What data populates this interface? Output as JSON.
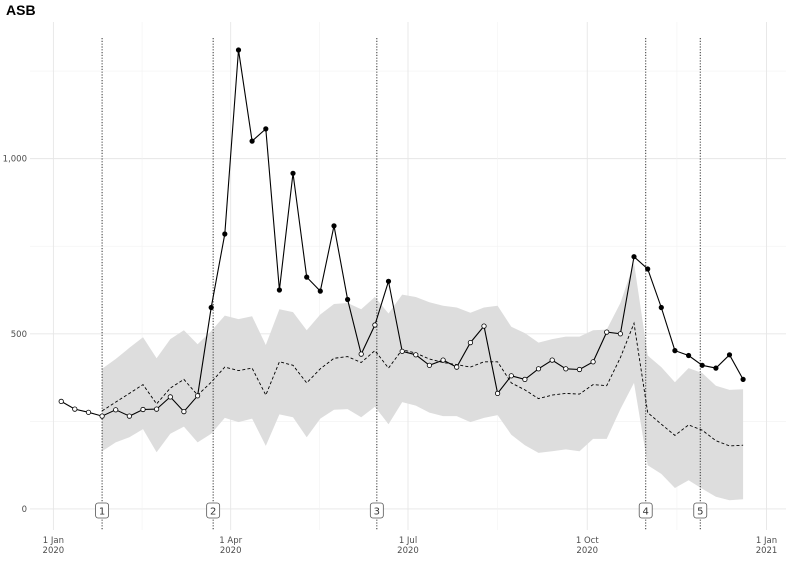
{
  "chart_data": {
    "type": "line",
    "title": "ASB",
    "xlabel": "",
    "ylabel": "",
    "x_range": [
      "2019-12-20",
      "2021-01-11"
    ],
    "y_range": [
      -60,
      1390
    ],
    "grid": true,
    "y_ticks": [
      {
        "value": 0,
        "label": "0"
      },
      {
        "value": 500,
        "label": "500"
      },
      {
        "value": 1000,
        "label": "1,000"
      }
    ],
    "x_ticks": [
      {
        "date": "2020-01-01",
        "label": [
          "1 Jan",
          "2020"
        ]
      },
      {
        "date": "2020-04-01",
        "label": [
          "1 Apr",
          "2020"
        ]
      },
      {
        "date": "2020-07-01",
        "label": [
          "1 Jul",
          "2020"
        ]
      },
      {
        "date": "2020-10-01",
        "label": [
          "1 Oct",
          "2020"
        ]
      },
      {
        "date": "2021-01-01",
        "label": [
          "1 Jan",
          "2021"
        ]
      }
    ],
    "events": [
      {
        "label": "1",
        "date": "2020-01-26"
      },
      {
        "label": "2",
        "date": "2020-03-23"
      },
      {
        "label": "3",
        "date": "2020-06-15"
      },
      {
        "label": "4",
        "date": "2020-10-31"
      },
      {
        "label": "5",
        "date": "2020-11-28"
      }
    ],
    "x": [
      "2020-01-05",
      "2020-01-12",
      "2020-01-19",
      "2020-01-26",
      "2020-02-02",
      "2020-02-09",
      "2020-02-16",
      "2020-02-23",
      "2020-03-01",
      "2020-03-08",
      "2020-03-15",
      "2020-03-22",
      "2020-03-29",
      "2020-04-05",
      "2020-04-12",
      "2020-04-19",
      "2020-04-26",
      "2020-05-03",
      "2020-05-10",
      "2020-05-17",
      "2020-05-24",
      "2020-05-31",
      "2020-06-07",
      "2020-06-14",
      "2020-06-21",
      "2020-06-28",
      "2020-07-05",
      "2020-07-12",
      "2020-07-19",
      "2020-07-26",
      "2020-08-02",
      "2020-08-09",
      "2020-08-16",
      "2020-08-23",
      "2020-08-30",
      "2020-09-06",
      "2020-09-13",
      "2020-09-20",
      "2020-09-27",
      "2020-10-04",
      "2020-10-11",
      "2020-10-18",
      "2020-10-25",
      "2020-11-01",
      "2020-11-08",
      "2020-11-15",
      "2020-11-22",
      "2020-11-29",
      "2020-12-06",
      "2020-12-13",
      "2020-12-20"
    ],
    "series": [
      {
        "values": [
          307,
          285,
          276,
          265,
          283,
          265,
          284,
          285,
          320,
          278,
          323,
          575,
          785,
          1310,
          1050,
          1085,
          625,
          958,
          662,
          622,
          808,
          598,
          442,
          525,
          650,
          450,
          440,
          410,
          425,
          405,
          475,
          522,
          330,
          380,
          370,
          400,
          425,
          400,
          398,
          420,
          505,
          500,
          720,
          685,
          575,
          452,
          438,
          410,
          402,
          440,
          370
        ],
        "point_fill": [
          "open",
          "open",
          "open",
          "open",
          "open",
          "open",
          "open",
          "open",
          "open",
          "open",
          "open",
          "filled",
          "filled",
          "filled",
          "filled",
          "filled",
          "filled",
          "filled",
          "filled",
          "filled",
          "filled",
          "filled",
          "open",
          "open",
          "filled",
          "open",
          "open",
          "open",
          "open",
          "open",
          "open",
          "open",
          "open",
          "open",
          "open",
          "open",
          "open",
          "open",
          "open",
          "open",
          "open",
          "open",
          "filled",
          "filled",
          "filled",
          "filled",
          "filled",
          "filled",
          "filled",
          "filled",
          "filled"
        ]
      },
      {
        "values": [
          null,
          null,
          null,
          280,
          305,
          330,
          355,
          300,
          345,
          370,
          325,
          362,
          405,
          395,
          402,
          325,
          420,
          410,
          360,
          400,
          430,
          435,
          418,
          452,
          402,
          455,
          445,
          428,
          418,
          412,
          405,
          420,
          420,
          360,
          340,
          315,
          325,
          330,
          328,
          355,
          352,
          432,
          530,
          275,
          242,
          210,
          240,
          225,
          195,
          180,
          182
        ],
        "lower": [
          null,
          null,
          null,
          165,
          190,
          205,
          228,
          162,
          215,
          235,
          190,
          215,
          260,
          248,
          258,
          180,
          270,
          262,
          205,
          258,
          283,
          285,
          262,
          292,
          242,
          305,
          295,
          275,
          265,
          265,
          248,
          260,
          268,
          212,
          182,
          160,
          165,
          170,
          165,
          200,
          200,
          285,
          360,
          125,
          100,
          60,
          82,
          58,
          35,
          25,
          28
        ],
        "upper": [
          null,
          null,
          null,
          400,
          428,
          460,
          490,
          430,
          485,
          510,
          470,
          508,
          552,
          542,
          550,
          468,
          570,
          562,
          510,
          555,
          585,
          588,
          570,
          605,
          558,
          612,
          605,
          590,
          580,
          575,
          560,
          575,
          580,
          520,
          502,
          475,
          485,
          492,
          492,
          510,
          512,
          588,
          702,
          438,
          405,
          362,
          402,
          388,
          352,
          340,
          342
        ]
      }
    ]
  }
}
